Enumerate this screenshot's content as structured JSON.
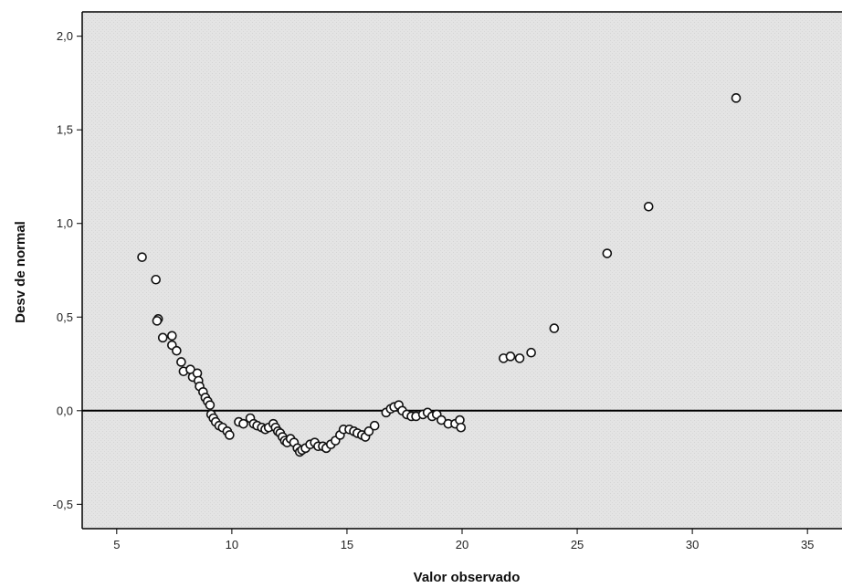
{
  "chart_data": {
    "type": "scatter",
    "title": "",
    "xlabel": "Valor observado",
    "ylabel": "Desv de normal",
    "xlim": [
      3.5,
      36.5
    ],
    "ylim": [
      -0.63,
      2.13
    ],
    "x_ticks": [
      5,
      10,
      15,
      20,
      25,
      30,
      35
    ],
    "x_tick_labels": [
      "5",
      "10",
      "15",
      "20",
      "25",
      "30",
      "35"
    ],
    "y_ticks": [
      -0.5,
      0.0,
      0.5,
      1.0,
      1.5,
      2.0
    ],
    "y_tick_labels": [
      "-0,5",
      "0,0",
      "0,5",
      "1,0",
      "1,5",
      "2,0"
    ],
    "reference_line_y": 0,
    "grid": false,
    "colors": {
      "plot_background": "#e6e6e6",
      "marker_fill": "#ffffff",
      "marker_stroke": "#111111",
      "reference_line": "#000000"
    },
    "series": [
      {
        "points": [
          [
            6.1,
            0.82
          ],
          [
            6.7,
            0.7
          ],
          [
            6.8,
            0.49
          ],
          [
            6.75,
            0.48
          ],
          [
            7.0,
            0.39
          ],
          [
            7.4,
            0.4
          ],
          [
            7.4,
            0.35
          ],
          [
            7.6,
            0.32
          ],
          [
            7.8,
            0.26
          ],
          [
            7.9,
            0.21
          ],
          [
            8.2,
            0.22
          ],
          [
            8.3,
            0.18
          ],
          [
            8.5,
            0.2
          ],
          [
            8.55,
            0.16
          ],
          [
            8.6,
            0.13
          ],
          [
            8.75,
            0.1
          ],
          [
            8.85,
            0.07
          ],
          [
            8.95,
            0.05
          ],
          [
            9.05,
            0.03
          ],
          [
            9.1,
            -0.02
          ],
          [
            9.2,
            -0.04
          ],
          [
            9.3,
            -0.06
          ],
          [
            9.45,
            -0.08
          ],
          [
            9.6,
            -0.09
          ],
          [
            9.8,
            -0.11
          ],
          [
            9.9,
            -0.13
          ],
          [
            10.3,
            -0.06
          ],
          [
            10.5,
            -0.07
          ],
          [
            10.8,
            -0.04
          ],
          [
            10.95,
            -0.07
          ],
          [
            11.1,
            -0.08
          ],
          [
            11.3,
            -0.09
          ],
          [
            11.45,
            -0.1
          ],
          [
            11.6,
            -0.09
          ],
          [
            11.8,
            -0.07
          ],
          [
            11.9,
            -0.09
          ],
          [
            12.0,
            -0.11
          ],
          [
            12.1,
            -0.12
          ],
          [
            12.2,
            -0.14
          ],
          [
            12.3,
            -0.16
          ],
          [
            12.4,
            -0.17
          ],
          [
            12.55,
            -0.15
          ],
          [
            12.7,
            -0.17
          ],
          [
            12.85,
            -0.2
          ],
          [
            12.95,
            -0.22
          ],
          [
            13.05,
            -0.21
          ],
          [
            13.2,
            -0.2
          ],
          [
            13.4,
            -0.18
          ],
          [
            13.6,
            -0.17
          ],
          [
            13.75,
            -0.19
          ],
          [
            13.95,
            -0.19
          ],
          [
            14.1,
            -0.2
          ],
          [
            14.3,
            -0.18
          ],
          [
            14.5,
            -0.16
          ],
          [
            14.7,
            -0.13
          ],
          [
            14.85,
            -0.1
          ],
          [
            15.1,
            -0.1
          ],
          [
            15.3,
            -0.11
          ],
          [
            15.45,
            -0.12
          ],
          [
            15.65,
            -0.13
          ],
          [
            15.8,
            -0.14
          ],
          [
            15.95,
            -0.11
          ],
          [
            16.2,
            -0.08
          ],
          [
            16.7,
            -0.01
          ],
          [
            16.9,
            0.01
          ],
          [
            17.05,
            0.02
          ],
          [
            17.25,
            0.03
          ],
          [
            17.4,
            0.0
          ],
          [
            17.6,
            -0.02
          ],
          [
            17.8,
            -0.03
          ],
          [
            18.0,
            -0.03
          ],
          [
            18.3,
            -0.02
          ],
          [
            18.5,
            -0.01
          ],
          [
            18.7,
            -0.03
          ],
          [
            18.9,
            -0.02
          ],
          [
            19.1,
            -0.05
          ],
          [
            19.4,
            -0.07
          ],
          [
            19.7,
            -0.07
          ],
          [
            19.9,
            -0.05
          ],
          [
            19.95,
            -0.09
          ],
          [
            21.8,
            0.28
          ],
          [
            22.1,
            0.29
          ],
          [
            22.5,
            0.28
          ],
          [
            23.0,
            0.31
          ],
          [
            24.0,
            0.44
          ],
          [
            26.3,
            0.84
          ],
          [
            28.1,
            1.09
          ],
          [
            31.9,
            1.67
          ]
        ]
      }
    ]
  }
}
